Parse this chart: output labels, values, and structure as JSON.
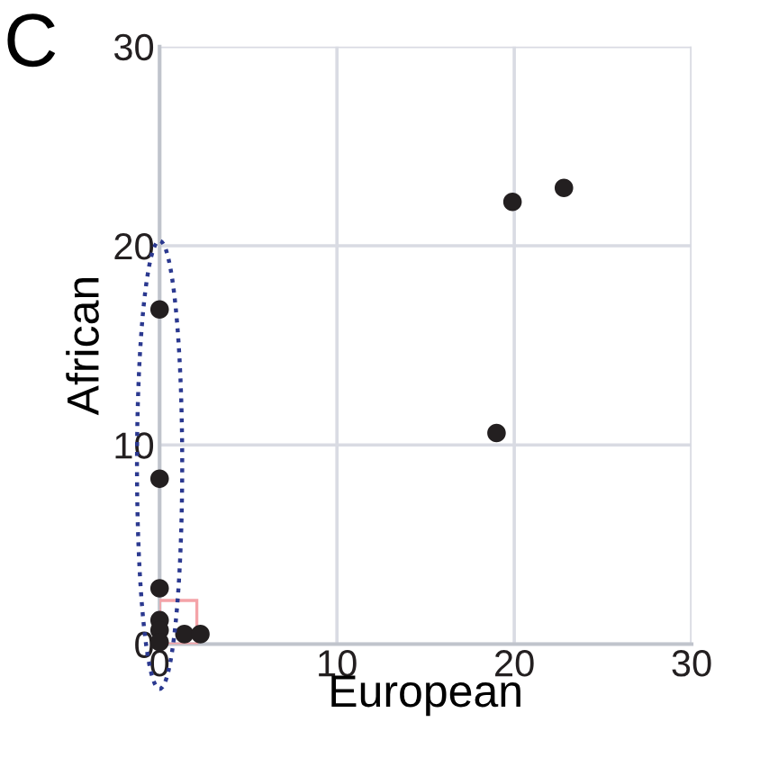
{
  "chart_data": {
    "type": "scatter",
    "xlabel": "European",
    "ylabel": "African",
    "annotations": [
      "C"
    ],
    "x": [
      0,
      0,
      0,
      0,
      0,
      0,
      1.4,
      2.3,
      19.0,
      19.9,
      22.8
    ],
    "values": [
      16.8,
      8.3,
      2.8,
      1.2,
      0.7,
      0.1,
      0.5,
      0.5,
      10.6,
      22.2,
      22.9
    ],
    "color": "#231f20",
    "marker": "circle",
    "xlim": [
      0,
      30
    ],
    "ylim": [
      0,
      30
    ],
    "xticks": [
      0,
      10,
      20,
      30
    ],
    "yticks": [
      0,
      10,
      20,
      30
    ],
    "grid": true,
    "legend": false
  }
}
